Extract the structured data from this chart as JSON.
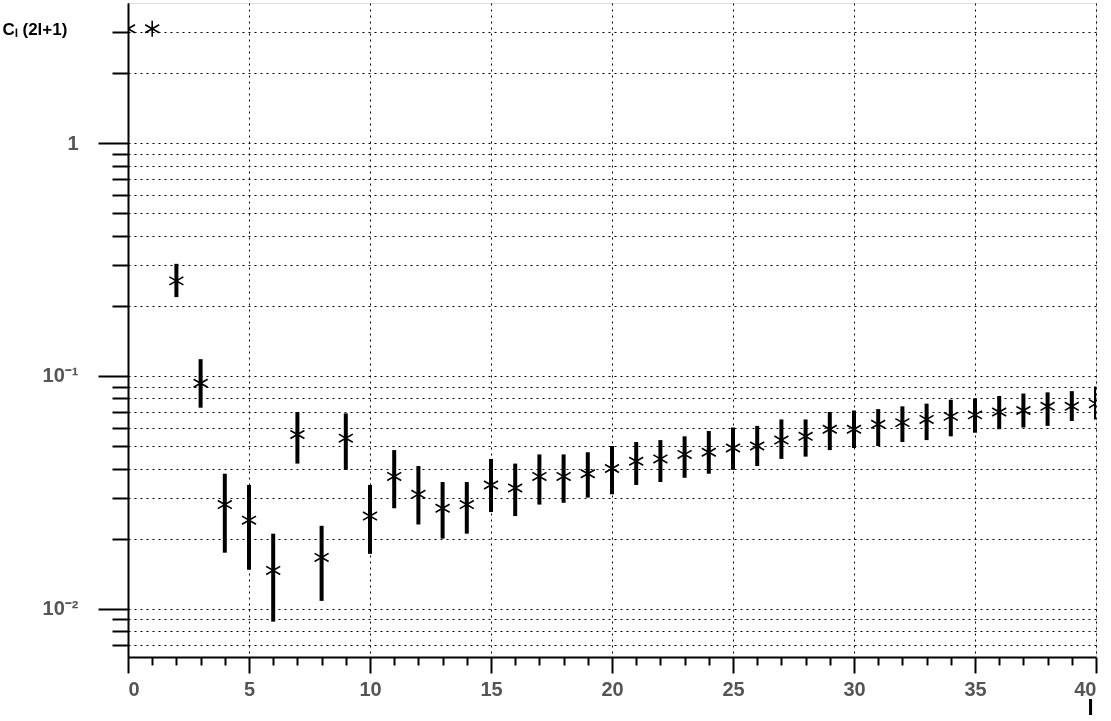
{
  "chart_data": {
    "type": "scatter",
    "xlabel": "l",
    "ylabel": "Cₗ (2l+1)",
    "color": "#000000",
    "marker": "cross",
    "log": true,
    "grid": true,
    "x": [
      0,
      1,
      2,
      3,
      4,
      5,
      6,
      7,
      8,
      9,
      10,
      11,
      12,
      13,
      14,
      15,
      16,
      17,
      18,
      19,
      20,
      21,
      22,
      23,
      24,
      25,
      26,
      27,
      28,
      29,
      30,
      31,
      32,
      33,
      34,
      35,
      36,
      37,
      38,
      39,
      40
    ],
    "values": [
      3.1,
      3.1,
      0.256,
      0.093,
      0.028,
      0.024,
      0.0146,
      0.056,
      0.0166,
      0.054,
      0.025,
      0.037,
      0.031,
      0.027,
      0.028,
      0.034,
      0.033,
      0.037,
      0.037,
      0.038,
      0.04,
      0.043,
      0.044,
      0.046,
      0.047,
      0.049,
      0.05,
      0.053,
      0.055,
      0.059,
      0.059,
      0.062,
      0.063,
      0.065,
      0.067,
      0.068,
      0.07,
      0.071,
      0.074,
      0.074,
      0.076
    ],
    "errors": [
      null,
      null,
      [
        0.218,
        0.303
      ],
      [
        0.073,
        0.118
      ],
      [
        0.0174,
        0.038
      ],
      [
        0.0147,
        0.034
      ],
      [
        0.0088,
        0.021
      ],
      [
        0.042,
        0.07
      ],
      [
        0.0108,
        0.0227
      ],
      [
        0.0395,
        0.069
      ],
      [
        0.0172,
        0.034
      ],
      [
        0.027,
        0.048
      ],
      [
        0.023,
        0.041
      ],
      [
        0.02,
        0.035
      ],
      [
        0.021,
        0.035
      ],
      [
        0.026,
        0.044
      ],
      [
        0.025,
        0.042
      ],
      [
        0.028,
        0.046
      ],
      [
        0.0285,
        0.046
      ],
      [
        0.03,
        0.047
      ],
      [
        0.031,
        0.05
      ],
      [
        0.034,
        0.052
      ],
      [
        0.035,
        0.053
      ],
      [
        0.0365,
        0.055
      ],
      [
        0.038,
        0.058
      ],
      [
        0.0395,
        0.06
      ],
      [
        0.041,
        0.061
      ],
      [
        0.044,
        0.065
      ],
      [
        0.045,
        0.065
      ],
      [
        0.048,
        0.07
      ],
      [
        0.049,
        0.071
      ],
      [
        0.05,
        0.072
      ],
      [
        0.052,
        0.074
      ],
      [
        0.053,
        0.076
      ],
      [
        0.055,
        0.079
      ],
      [
        0.057,
        0.08
      ],
      [
        0.059,
        0.082
      ],
      [
        0.06,
        0.084
      ],
      [
        0.061,
        0.085
      ],
      [
        0.064,
        0.086
      ],
      [
        0.065,
        0.09
      ]
    ],
    "xlim": [
      0,
      40
    ],
    "xticks": [
      0,
      {
        "value": 1,
        "label": null
      },
      {
        "value": 2,
        "label": null
      },
      {
        "value": 3,
        "label": null
      },
      {
        "value": 4,
        "label": null
      },
      5,
      {
        "value": 6,
        "label": null
      },
      {
        "value": 7,
        "label": null
      },
      {
        "value": 8,
        "label": null
      },
      {
        "value": 9,
        "label": null
      },
      10,
      {
        "value": 11,
        "label": null
      },
      {
        "value": 12,
        "label": null
      },
      {
        "value": 13,
        "label": null
      },
      {
        "value": 14,
        "label": null
      },
      15,
      {
        "value": 16,
        "label": null
      },
      {
        "value": 17,
        "label": null
      },
      {
        "value": 18,
        "label": null
      },
      {
        "value": 19,
        "label": null
      },
      20,
      {
        "value": 21,
        "label": null
      },
      {
        "value": 22,
        "label": null
      },
      {
        "value": 23,
        "label": null
      },
      {
        "value": 24,
        "label": null
      },
      25,
      {
        "value": 26,
        "label": null
      },
      {
        "value": 27,
        "label": null
      },
      {
        "value": 28,
        "label": null
      },
      {
        "value": 29,
        "label": null
      },
      30,
      {
        "value": 31,
        "label": null
      },
      {
        "value": 32,
        "label": null
      },
      {
        "value": 33,
        "label": null
      },
      {
        "value": 34,
        "label": null
      },
      35,
      {
        "value": 36,
        "label": null
      },
      {
        "value": 37,
        "label": null
      },
      {
        "value": 38,
        "label": null
      },
      {
        "value": 39,
        "label": null
      },
      40
    ],
    "ylim": [
      0.0062,
      4
    ],
    "yticks": [
      {
        "value": 0.007,
        "label": null
      },
      {
        "value": 0.008,
        "label": null
      },
      {
        "value": 0.009,
        "label": null
      },
      {
        "value": 0.01,
        "label": "10⁻²"
      },
      {
        "value": 0.02,
        "label": null
      },
      {
        "value": 0.03,
        "label": null
      },
      {
        "value": 0.04,
        "label": null
      },
      {
        "value": 0.05,
        "label": null
      },
      {
        "value": 0.06,
        "label": null
      },
      {
        "value": 0.07,
        "label": null
      },
      {
        "value": 0.08,
        "label": null
      },
      {
        "value": 0.09,
        "label": null
      },
      {
        "value": 0.1,
        "label": "10⁻¹"
      },
      {
        "value": 0.2,
        "label": null
      },
      {
        "value": 0.3,
        "label": null
      },
      {
        "value": 0.4,
        "label": null
      },
      {
        "value": 0.5,
        "label": null
      },
      {
        "value": 0.6,
        "label": null
      },
      {
        "value": 0.7,
        "label": null
      },
      {
        "value": 0.8,
        "label": null
      },
      {
        "value": 0.9,
        "label": null
      },
      1,
      {
        "value": 2,
        "label": null
      },
      {
        "value": 3,
        "label": null
      }
    ]
  }
}
